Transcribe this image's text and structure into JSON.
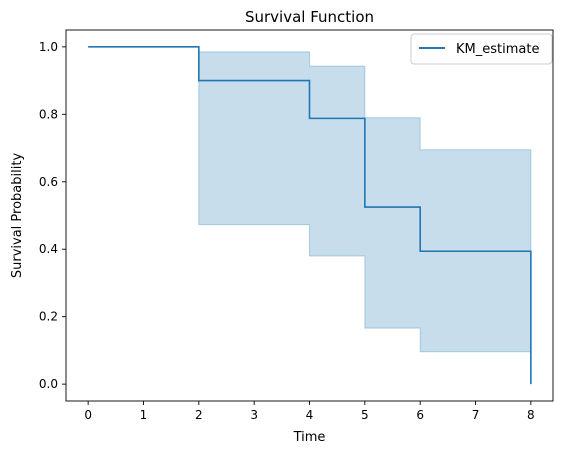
{
  "chart_data": {
    "type": "line",
    "title": "Survival Function",
    "xlabel": "Time",
    "ylabel": "Survival Probability",
    "xlim": [
      -0.4,
      8.4
    ],
    "ylim": [
      -0.05,
      1.05
    ],
    "xticks": [
      0,
      1,
      2,
      3,
      4,
      5,
      6,
      7,
      8
    ],
    "xtick_labels": [
      "0",
      "1",
      "2",
      "3",
      "4",
      "5",
      "6",
      "7",
      "8"
    ],
    "yticks": [
      0.0,
      0.2,
      0.4,
      0.6,
      0.8,
      1.0
    ],
    "ytick_labels": [
      "0.0",
      "0.2",
      "0.4",
      "0.6",
      "0.8",
      "1.0"
    ],
    "grid": false,
    "legend_position": "top-right",
    "series": [
      {
        "name": "KM_estimate",
        "color": "#1f77b4",
        "step": "post",
        "x": [
          0,
          2,
          4,
          5,
          6,
          8,
          8
        ],
        "y": [
          1.0,
          0.9,
          0.788,
          0.525,
          0.394,
          0.394,
          0.0
        ]
      }
    ],
    "confidence_band": {
      "color": "#1f77b4",
      "opacity": 0.25,
      "x": [
        0,
        2,
        4,
        5,
        6,
        8
      ],
      "lower": [
        1.0,
        0.473,
        0.38,
        0.166,
        0.096,
        0.096
      ],
      "upper": [
        1.0,
        0.985,
        0.943,
        0.79,
        0.695,
        0.695
      ]
    }
  }
}
